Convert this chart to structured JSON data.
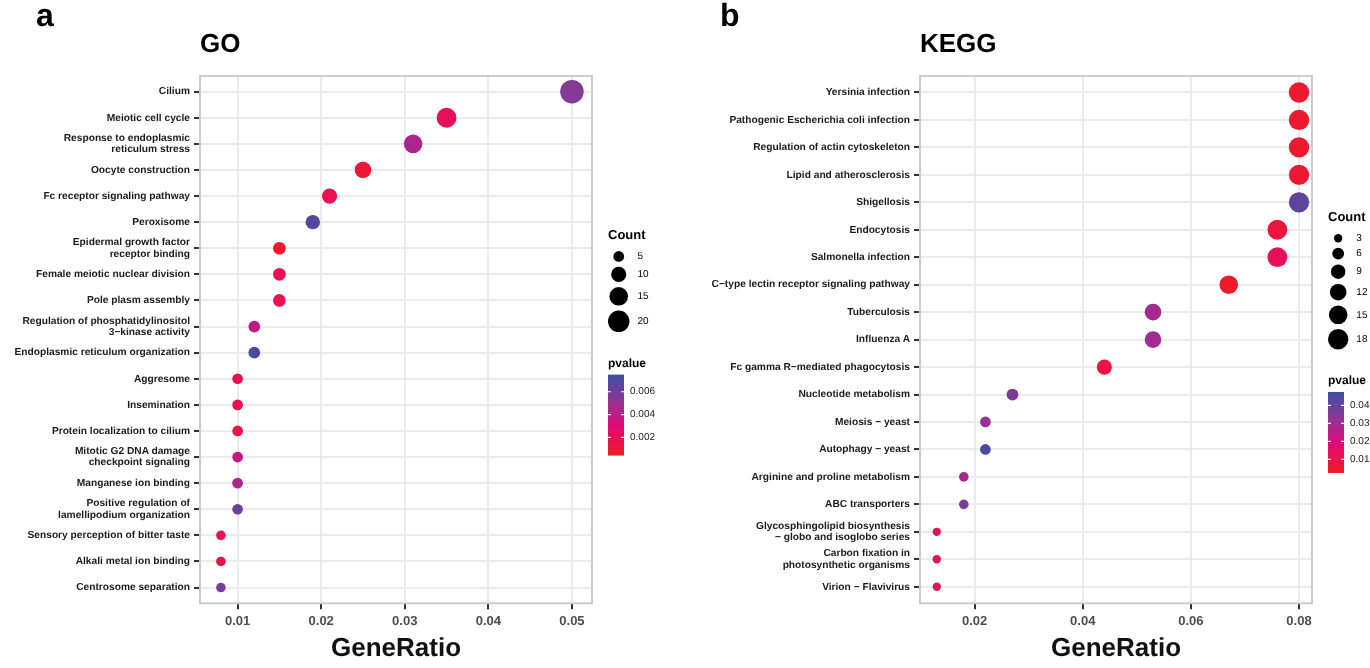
{
  "chart_data": [
    {
      "type": "bubble",
      "orientation": "horizontal",
      "title": "GO",
      "xlabel": "GeneRatio",
      "annotations": [
        "a"
      ],
      "categories": [
        "Cilium",
        "Meiotic cell cycle",
        "Response to endoplasmic reticulum stress",
        "Oocyte construction",
        "Fc receptor signaling pathway",
        "Peroxisome",
        "Epidermal growth factor receptor binding",
        "Female meiotic nuclear division",
        "Pole plasm assembly",
        "Regulation of phosphatidylinositol 3−kinase activity",
        "Endoplasmic reticulum organization",
        "Aggresome",
        "Insemination",
        "Protein localization to cilium",
        "Mitotic G2 DNA damage checkpoint signaling",
        "Manganese ion binding",
        "Positive regulation of lamellipodium organization",
        "Sensory perception of bitter taste",
        "Alkali metal ion binding",
        "Centrosome separation"
      ],
      "values": [
        0.05,
        0.035,
        0.031,
        0.025,
        0.021,
        0.019,
        0.015,
        0.015,
        0.015,
        0.012,
        0.012,
        0.01,
        0.01,
        0.01,
        0.01,
        0.01,
        0.01,
        0.008,
        0.008,
        0.008
      ],
      "sizes": [
        24,
        17,
        15,
        12,
        10,
        9,
        7,
        7,
        7,
        6,
        6,
        5,
        5,
        5,
        5,
        5,
        5,
        4,
        4,
        4
      ],
      "cvalues": [
        0.0055,
        0.002,
        0.0045,
        0.001,
        0.0018,
        0.0068,
        0.0008,
        0.0018,
        0.0018,
        0.004,
        0.0072,
        0.0018,
        0.0018,
        0.0015,
        0.0038,
        0.0045,
        0.0062,
        0.0018,
        0.0018,
        0.006
      ],
      "size_legend": [
        5,
        10,
        15,
        20
      ],
      "legend_title": "Count",
      "clabel": "pvalue",
      "clim": [
        0.0005,
        0.0075
      ],
      "cticks": [
        0.002,
        0.004,
        0.006
      ],
      "xlim": [
        0.0055,
        0.0524
      ],
      "xticks": [
        0.01,
        0.02,
        0.03,
        0.04,
        0.05
      ],
      "grid": true
    },
    {
      "type": "bubble",
      "orientation": "horizontal",
      "title": "KEGG",
      "xlabel": "GeneRatio",
      "annotations": [
        "b"
      ],
      "categories": [
        "Yersinia infection",
        "Pathogenic Escherichia coli infection",
        "Regulation of actin cytoskeleton",
        "Lipid and atherosclerosis",
        "Shigellosis",
        "Endocytosis",
        "Salmonella infection",
        "C−type lectin receptor signaling pathway",
        "Tuberculosis",
        "Influenza A",
        "Fc gamma R−mediated phagocytosis",
        "Nucleotide metabolism",
        "Meiosis − yeast",
        "Autophagy − yeast",
        "Arginine and proline metabolism",
        "ABC transporters",
        "Glycosphingolipid biosynthesis − globo and isoglobo series",
        "Carbon fixation in photosynthetic organisms",
        "Virion − Flavivirus"
      ],
      "values": [
        0.08,
        0.08,
        0.08,
        0.08,
        0.08,
        0.076,
        0.076,
        0.067,
        0.053,
        0.053,
        0.044,
        0.027,
        0.022,
        0.022,
        0.018,
        0.018,
        0.013,
        0.013,
        0.013
      ],
      "sizes": [
        18,
        18,
        18,
        18,
        18,
        17,
        17,
        15,
        12,
        12,
        10,
        6,
        5,
        5,
        4,
        4,
        3,
        3,
        3
      ],
      "cvalues": [
        0.005,
        0.005,
        0.005,
        0.006,
        0.042,
        0.008,
        0.012,
        0.004,
        0.03,
        0.03,
        0.008,
        0.036,
        0.032,
        0.046,
        0.03,
        0.036,
        0.013,
        0.013,
        0.013
      ],
      "size_legend": [
        3,
        6,
        9,
        12,
        15,
        18
      ],
      "legend_title": "Count",
      "clabel": "pvalue",
      "clim": [
        0.003,
        0.0475
      ],
      "cticks": [
        0.01,
        0.02,
        0.03,
        0.04
      ],
      "xlim": [
        0.0099,
        0.0824
      ],
      "xticks": [
        0.02,
        0.04,
        0.06,
        0.08
      ],
      "grid": true
    }
  ]
}
